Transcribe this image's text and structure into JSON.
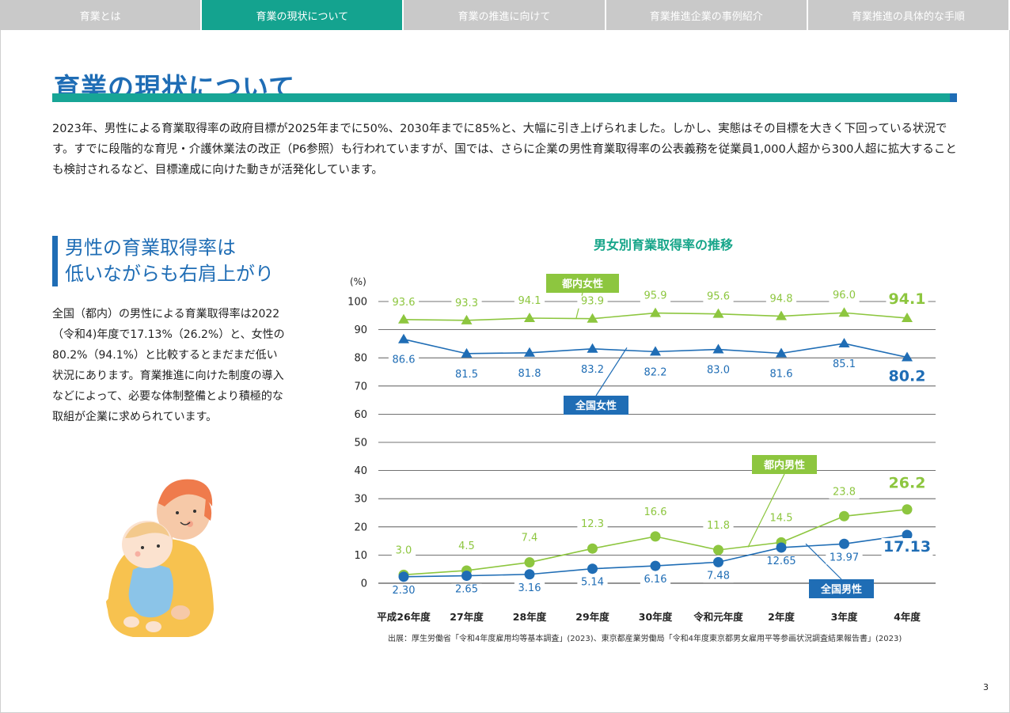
{
  "tabs": [
    {
      "label": "育業とは"
    },
    {
      "label": "育業の現状について"
    },
    {
      "label": "育業の推進に向けて"
    },
    {
      "label": "育業推進企業の事例紹介"
    },
    {
      "label": "育業推進の具体的な手順"
    }
  ],
  "page": {
    "title": "育業の現状について",
    "intro": "2023年、男性による育業取得率の政府目標が2025年までに50%、2030年までに85%と、大幅に引き上げられました。しかし、実態はその目標を大きく下回っている状況です。すでに段階的な育児・介護休業法の改正（P6参照）も行われていますが、国では、さらに企業の男性育業取得率の公表義務を従業員1,000人超から300人超に拡大することも検討されるなど、目標達成に向けた動きが活発化しています。",
    "subhead_line1": "男性の育業取得率は",
    "subhead_line2": "低いながらも右肩上がり",
    "body": "全国（都内）の男性による育業取得率は2022（令和4)年度で17.13%（26.2%）と、女性の80.2%（94.1%）と比較するとまだまだ低い状況にあります。育業推進に向けた制度の導入などによって、必要な体制整備とより積極的な取組が企業に求められています。",
    "source": "出展：厚生労働省「令和4年度雇用均等基本調査」(2023)、東京都産業労働局「令和4年度東京都男女雇用平等参画状況調査結果報告書」(2023)",
    "page_number": "3"
  },
  "colors": {
    "tokyo": "#8dc63f",
    "national": "#1f6db5",
    "accent": "#17a596"
  },
  "chart_data": {
    "type": "line",
    "title": "男女別育業取得率の推移",
    "ylabel": "(%)",
    "ylim": [
      0,
      100
    ],
    "yticks": [
      0,
      10,
      20,
      30,
      40,
      50,
      60,
      70,
      80,
      90,
      100
    ],
    "categories": [
      "平成26年度",
      "27年度",
      "28年度",
      "29年度",
      "30年度",
      "令和元年度",
      "2年度",
      "3年度",
      "4年度"
    ],
    "series": [
      {
        "name": "都内女性",
        "marker": "triangle",
        "color": "#8dc63f",
        "values": [
          93.6,
          93.3,
          94.1,
          93.9,
          95.9,
          95.6,
          94.8,
          96.0,
          94.1
        ],
        "labels": [
          "93.6",
          "93.3",
          "94.1",
          "93.9",
          "95.9",
          "95.6",
          "94.8",
          "96.0",
          "94.1"
        ]
      },
      {
        "name": "全国女性",
        "marker": "triangle",
        "color": "#1f6db5",
        "values": [
          86.6,
          81.5,
          81.8,
          83.2,
          82.2,
          83.0,
          81.6,
          85.1,
          80.2
        ],
        "labels": [
          "86.6",
          "81.5",
          "81.8",
          "83.2",
          "82.2",
          "83.0",
          "81.6",
          "85.1",
          "80.2"
        ]
      },
      {
        "name": "都内男性",
        "marker": "circle",
        "color": "#8dc63f",
        "values": [
          3.0,
          4.5,
          7.4,
          12.3,
          16.6,
          11.8,
          14.5,
          23.8,
          26.2
        ],
        "labels": [
          "3.0",
          "4.5",
          "7.4",
          "12.3",
          "16.6",
          "11.8",
          "14.5",
          "23.8",
          "26.2"
        ]
      },
      {
        "name": "全国男性",
        "marker": "circle",
        "color": "#1f6db5",
        "values": [
          2.3,
          2.65,
          3.16,
          5.14,
          6.16,
          7.48,
          12.65,
          13.97,
          17.13
        ],
        "labels": [
          "2.30",
          "2.65",
          "3.16",
          "5.14",
          "6.16",
          "7.48",
          "12.65",
          "13.97",
          "17.13"
        ]
      }
    ]
  }
}
